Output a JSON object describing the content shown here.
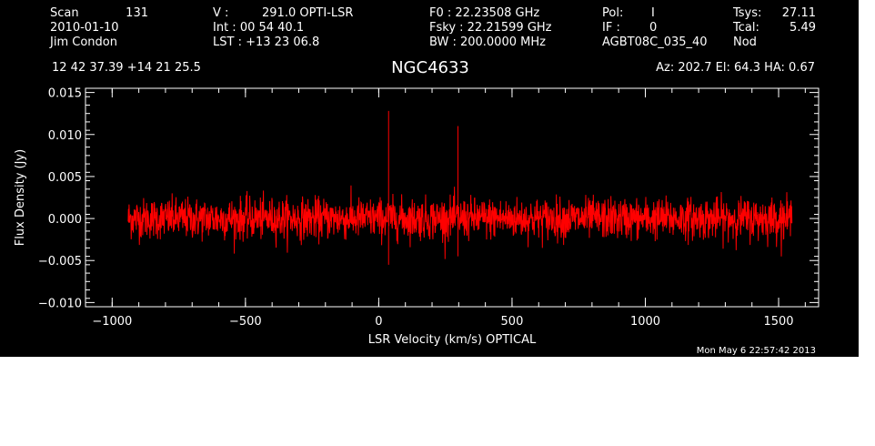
{
  "header": {
    "col1": [
      "Scan",
      "131",
      "2010-01-10",
      "Jim Condon"
    ],
    "col2": [
      "V    :",
      "291.0 OPTI-LSR",
      "Int  :  00 54 40.1",
      "LST : +13 23 06.8"
    ],
    "col3": [
      "F0    :  22.23508 GHz",
      "Fsky :  22.21599 GHz",
      "BW    : 200.0000 MHz"
    ],
    "col4": [
      "Pol:",
      "I",
      "IF :",
      "0",
      "AGBT08C_035_40"
    ],
    "col5": [
      "Tsys:",
      "27.11",
      "Tcal:",
      "5.49",
      "Nod"
    ],
    "coords": "12 42 37.39   +14 21 25.5",
    "azel": "Az: 202.7   El:  64.3   HA:  0.67"
  },
  "timestamp": "Mon May  6 22:57:42 2013",
  "colors": {
    "background": "#000000",
    "foreground": "#ffffff",
    "series": "#ff0000"
  },
  "chart_data": {
    "type": "line",
    "title": "NGC4633",
    "xlabel": "LSR Velocity (km/s) OPTICAL",
    "ylabel": "Flux Density (Jy)",
    "xlim": [
      -1100,
      1650
    ],
    "ylim": [
      -0.0105,
      0.0155
    ],
    "xticks": [
      -1000,
      -500,
      0,
      500,
      1000,
      1500
    ],
    "xtick_labels": [
      "−1000",
      "−500",
      "0",
      "500",
      "1000",
      "1500"
    ],
    "yticks": [
      -0.01,
      -0.005,
      0.0,
      0.005,
      0.01,
      0.015
    ],
    "ytick_labels": [
      "−0.010",
      "−0.005",
      "0.000",
      "0.005",
      "0.010",
      "0.015"
    ],
    "grid": false,
    "series": [
      {
        "x_range": [
          -940,
          1550
        ],
        "baseline": 0.0,
        "noise_rms": 0.0012,
        "spikes": [
          {
            "x": 37,
            "y": 0.0128
          },
          {
            "x": 37,
            "y": -0.0055
          },
          {
            "x": 297,
            "y": 0.011
          },
          {
            "x": 297,
            "y": -0.0045
          }
        ]
      }
    ]
  }
}
